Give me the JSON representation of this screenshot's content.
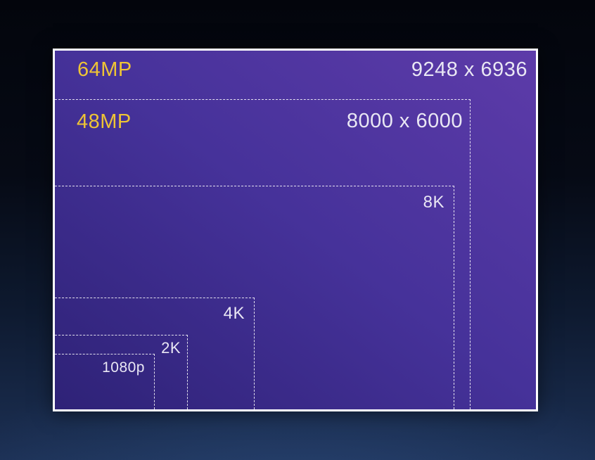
{
  "diagram": {
    "rects": [
      {
        "label": "64MP",
        "dimensions": "9248 x 6936"
      },
      {
        "label": "48MP",
        "dimensions": "8000 x 6000"
      },
      {
        "label": "8K"
      },
      {
        "label": "4K"
      },
      {
        "label": "2K"
      },
      {
        "label": "1080p"
      }
    ],
    "colors": {
      "accent_gold": "#eec435",
      "text_white": "#e9e7f4",
      "panel_fill_dark": "#2e2277",
      "panel_fill_light": "#5d3ba9",
      "border_white": "#ffffff"
    }
  }
}
